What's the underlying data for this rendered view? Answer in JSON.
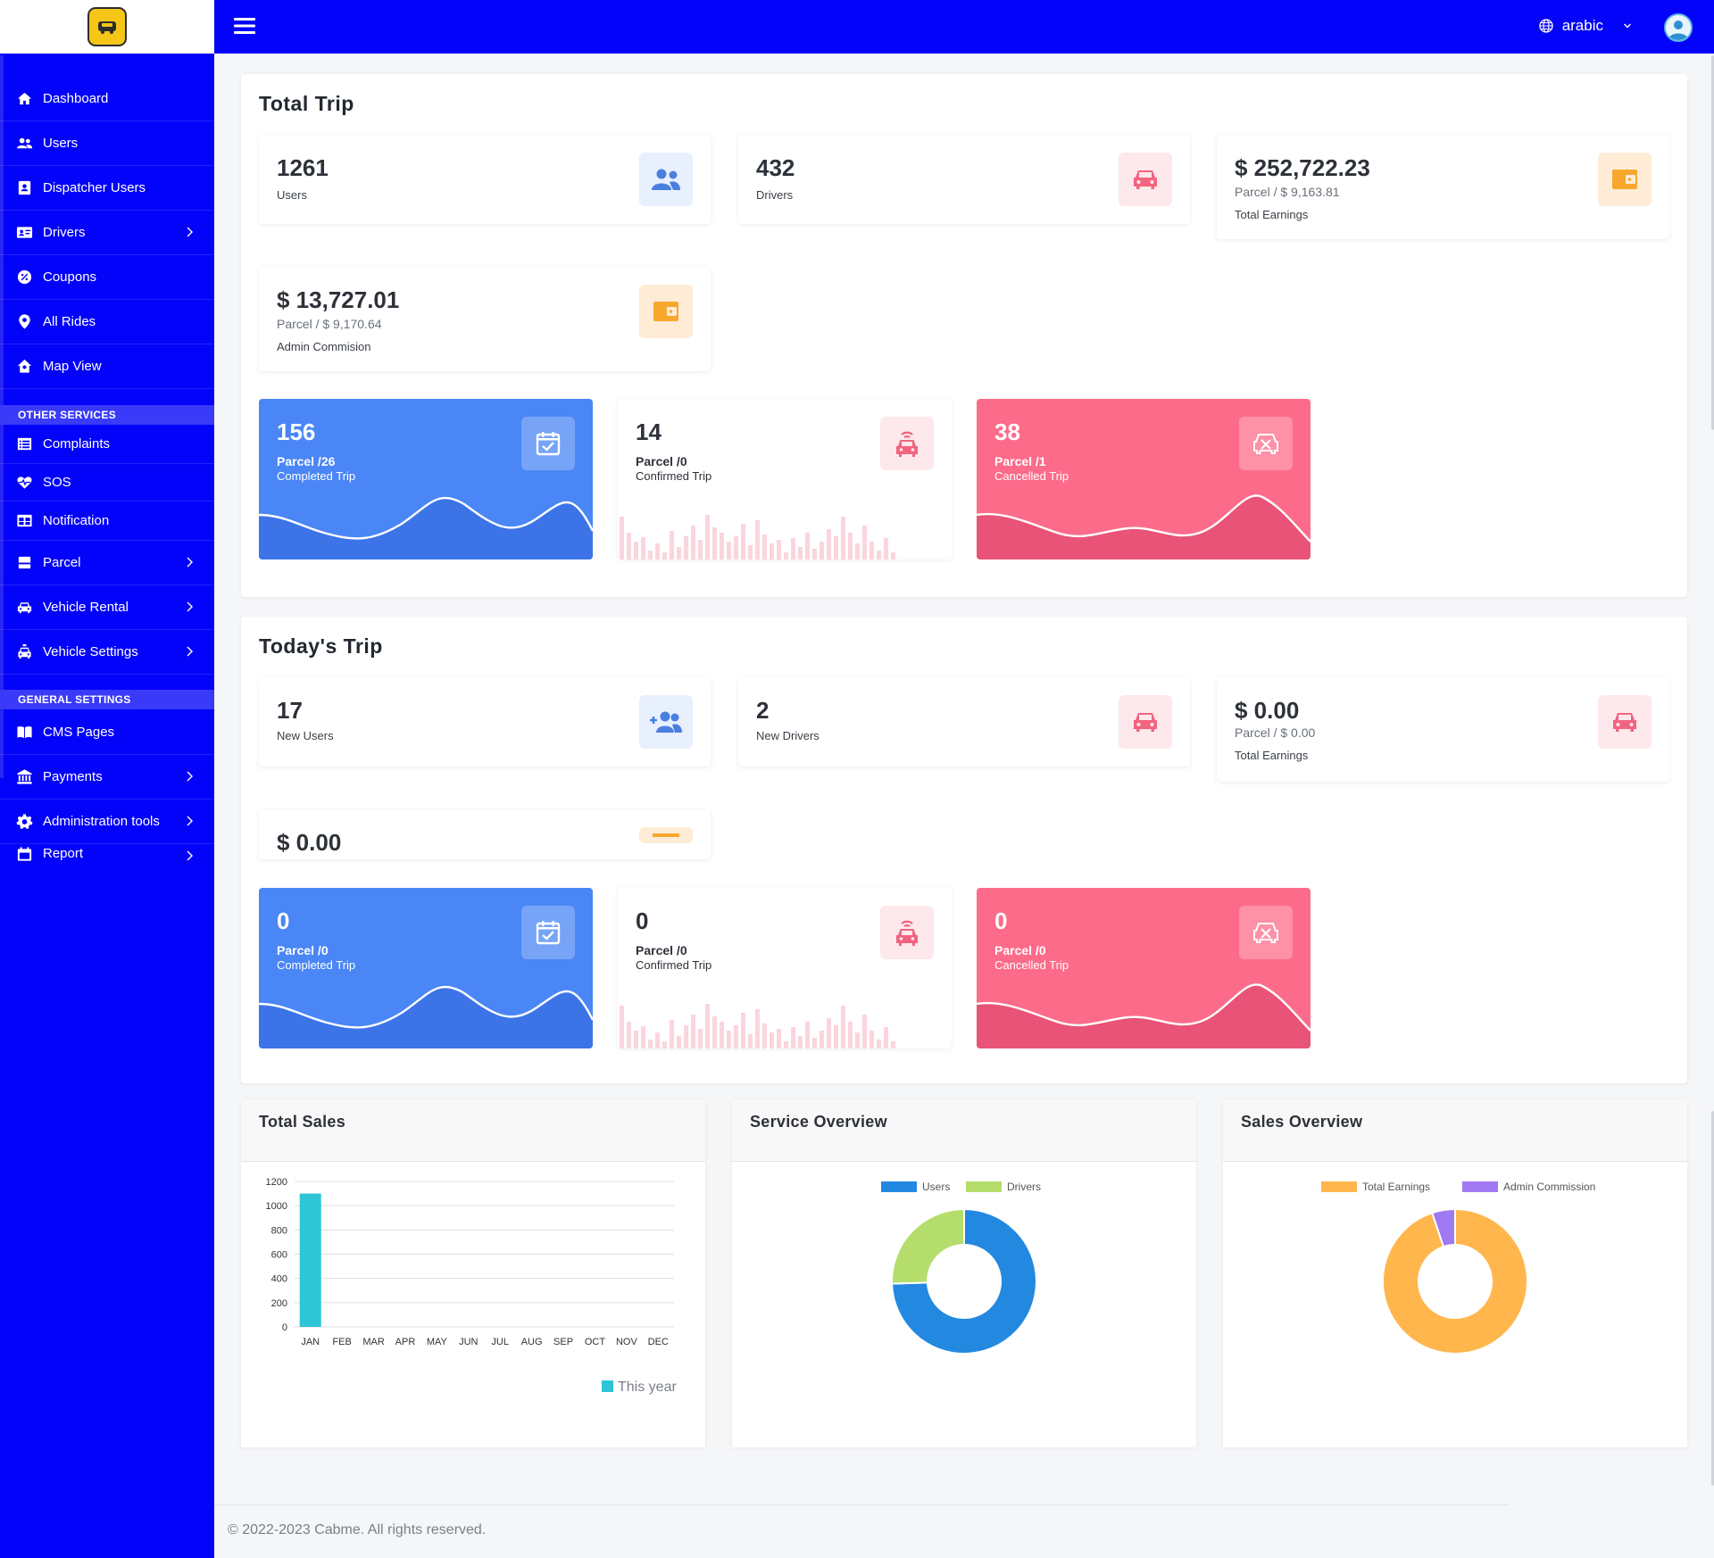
{
  "header": {
    "language": "arabic"
  },
  "sidebar": {
    "items": [
      {
        "label": "Dashboard",
        "icon": "home-icon"
      },
      {
        "label": "Users",
        "icon": "users-icon"
      },
      {
        "label": "Dispatcher Users",
        "icon": "id-card-icon"
      },
      {
        "label": "Drivers",
        "icon": "driver-card-icon"
      },
      {
        "label": "Coupons",
        "icon": "coupon-icon"
      },
      {
        "label": "All Rides",
        "icon": "map-pin-icon"
      },
      {
        "label": "Map View",
        "icon": "map-home-icon"
      }
    ],
    "section_other": "OTHER SERVICES",
    "other_items": [
      {
        "label": "Complaints",
        "icon": "list-icon"
      },
      {
        "label": "SOS",
        "icon": "heartbeat-icon"
      },
      {
        "label": "Notification",
        "icon": "table-icon"
      },
      {
        "label": "Parcel",
        "icon": "box-icon"
      },
      {
        "label": "Vehicle Rental",
        "icon": "car-icon"
      },
      {
        "label": "Vehicle Settings",
        "icon": "taxi-icon"
      }
    ],
    "section_general": "GENERAL SETTINGS",
    "general_items": [
      {
        "label": "CMS Pages",
        "icon": "book-icon"
      },
      {
        "label": "Payments",
        "icon": "bank-icon"
      },
      {
        "label": "Administration tools",
        "icon": "gear-icon"
      },
      {
        "label": "Report",
        "icon": "calendar-icon"
      }
    ]
  },
  "total_trip": {
    "title": "Total Trip",
    "users": {
      "value": "1261",
      "label": "Users"
    },
    "drivers": {
      "value": "432",
      "label": "Drivers"
    },
    "earnings": {
      "value": "$ 252,722.23",
      "sub": "Parcel / $ 9,163.81",
      "label": "Total Earnings"
    },
    "commission": {
      "value": "$ 13,727.01",
      "sub": "Parcel / $ 9,170.64",
      "label": "Admin Commision"
    },
    "completed": {
      "value": "156",
      "sub": "Parcel /26",
      "label": "Completed Trip"
    },
    "confirmed": {
      "value": "14",
      "sub": "Parcel /0",
      "label": "Confirmed Trip"
    },
    "cancelled": {
      "value": "38",
      "sub": "Parcel /1",
      "label": "Cancelled Trip"
    }
  },
  "today_trip": {
    "title": "Today's Trip",
    "users": {
      "value": "17",
      "label": "New Users"
    },
    "drivers": {
      "value": "2",
      "label": "New Drivers"
    },
    "earnings": {
      "value": "$ 0.00",
      "sub": "Parcel / $ 0.00",
      "label": "Total Earnings"
    },
    "commission": {
      "value": "$ 0.00"
    },
    "completed": {
      "value": "0",
      "sub": "Parcel /0",
      "label": "Completed Trip"
    },
    "confirmed": {
      "value": "0",
      "sub": "Parcel /0",
      "label": "Confirmed Trip"
    },
    "cancelled": {
      "value": "0",
      "sub": "Parcel /0",
      "label": "Cancelled Trip"
    }
  },
  "colors": {
    "sidebar": "#0403f9",
    "blue_card": "#4a86f5",
    "pink_card": "#fc6c8a",
    "bar": "#2ec5d6",
    "users_slice": "#2389e0",
    "drivers_slice": "#b5dd6c",
    "earnings_slice": "#ffb64d",
    "commission_slice": "#a07af2"
  },
  "chart_data": [
    {
      "type": "bar",
      "title": "Total Sales",
      "categories": [
        "JAN",
        "FEB",
        "MAR",
        "APR",
        "MAY",
        "JUN",
        "JUL",
        "AUG",
        "SEP",
        "OCT",
        "NOV",
        "DEC"
      ],
      "series": [
        {
          "name": "This year",
          "values": [
            1100,
            0,
            0,
            0,
            0,
            0,
            0,
            0,
            0,
            0,
            0,
            0
          ]
        }
      ],
      "yticks": [
        "0",
        "200",
        "400",
        "600",
        "800",
        "1000",
        "1200"
      ],
      "ylim": [
        0,
        1200
      ],
      "grid": true,
      "legend": "bottom-right"
    },
    {
      "type": "pie",
      "title": "Service Overview",
      "labels": [
        "Users",
        "Drivers"
      ],
      "values": [
        1261,
        432
      ],
      "legend": "top"
    },
    {
      "type": "pie",
      "title": "Sales Overview",
      "labels": [
        "Total Earnings",
        "Admin Commission"
      ],
      "values": [
        252722.23,
        13727.01
      ],
      "legend": "top"
    }
  ],
  "footer": {
    "text": "© 2022-2023 Cabme. All rights reserved."
  }
}
